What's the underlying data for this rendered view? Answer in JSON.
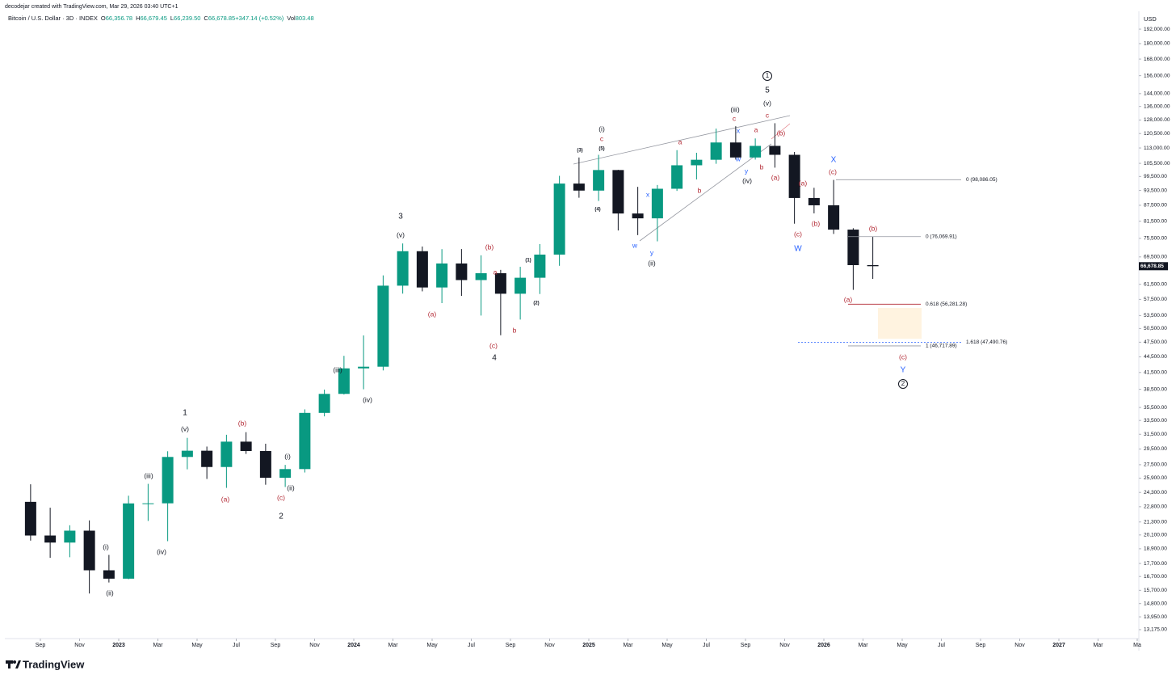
{
  "attribution": "decodejar created with TradingView.com, Mar 29, 2026 03:40 UTC+1",
  "brand": "TradingView",
  "chart_data": {
    "type": "candlestick",
    "title": "Bitcoin / U.S. Dollar · 3D · INDEX",
    "readout": [
      {
        "label": "O",
        "value": "66,356.78"
      },
      {
        "label": "H",
        "value": "66,679.45"
      },
      {
        "label": "L",
        "value": "66,239.50"
      },
      {
        "label": "C",
        "value": "66,678.85"
      },
      {
        "label": "",
        "value": "+347.14 (+0.52%)"
      },
      {
        "label": "Vol",
        "value": "803.48"
      }
    ],
    "currency": "USD",
    "log_scale": true,
    "grid": false,
    "up_color": "#089981",
    "down_color": "#131722",
    "x": [
      "2022-08",
      "2022-09",
      "2022-10",
      "2022-11",
      "2022-12",
      "2023-01",
      "2023-02",
      "2023-03",
      "2023-04",
      "2023-05",
      "2023-06",
      "2023-07",
      "2023-08",
      "2023-09",
      "2023-10",
      "2023-11",
      "2023-12",
      "2024-01",
      "2024-02",
      "2024-03",
      "2024-04",
      "2024-05",
      "2024-06",
      "2024-07",
      "2024-08",
      "2024-09",
      "2024-10",
      "2024-11",
      "2024-12",
      "2025-01",
      "2025-02",
      "2025-03",
      "2025-04",
      "2025-05",
      "2025-06",
      "2025-07",
      "2025-08",
      "2025-09",
      "2025-10",
      "2025-11",
      "2025-12",
      "2026-01",
      "2026-02",
      "2026-03"
    ],
    "open": [
      23300,
      20050,
      19430,
      20490,
      17170,
      16540,
      23140,
      23150,
      28470,
      29270,
      27220,
      30480,
      29230,
      25940,
      26970,
      34650,
      37720,
      42270,
      42580,
      61130,
      71290,
      60640,
      67490,
      62680,
      64620,
      58970,
      63330,
      70220,
      96400,
      93430,
      102400,
      84350,
      82550,
      94200,
      104600,
      107200,
      115800,
      108300,
      114050,
      109600,
      90400,
      87500,
      78500,
      67000
    ],
    "high": [
      25200,
      22700,
      20990,
      21450,
      18390,
      23950,
      25250,
      29200,
      31000,
      29820,
      31430,
      31800,
      30200,
      27480,
      35200,
      38450,
      44700,
      48970,
      64000,
      73800,
      72800,
      71950,
      71980,
      70000,
      65600,
      66500,
      73600,
      99800,
      108300,
      109600,
      102500,
      95000,
      95800,
      111900,
      110600,
      123200,
      124500,
      117900,
      126200,
      111000,
      94600,
      98000,
      79000,
      76000
    ],
    "low": [
      19600,
      18150,
      18200,
      15480,
      16260,
      16500,
      21400,
      19550,
      26940,
      25810,
      24800,
      28860,
      25150,
      24900,
      26560,
      34120,
      37620,
      38500,
      41880,
      59000,
      59600,
      56550,
      58400,
      53500,
      49000,
      52550,
      58900,
      66800,
      90500,
      89200,
      78200,
      76600,
      74500,
      93300,
      98200,
      105300,
      107300,
      107300,
      103500,
      80600,
      84400,
      77000,
      60000,
      63000
    ],
    "close": [
      20050,
      19430,
      20490,
      17170,
      16540,
      23140,
      23150,
      28470,
      29270,
      27220,
      30480,
      29230,
      25940,
      26970,
      34650,
      37720,
      42270,
      42580,
      61130,
      71290,
      60640,
      67490,
      62680,
      64620,
      58970,
      63330,
      70220,
      96400,
      93430,
      102400,
      84350,
      82550,
      94200,
      104600,
      107200,
      115800,
      108300,
      114050,
      109600,
      90400,
      87500,
      78500,
      67000,
      66678.85
    ],
    "xlim": [
      "2022-07",
      "2027-05"
    ],
    "xticks": [
      {
        "value": "2022-09",
        "label": "Sep"
      },
      {
        "value": "2022-11",
        "label": "Nov"
      },
      {
        "value": "2023-01",
        "label": "2023"
      },
      {
        "value": "2023-03",
        "label": "Mar"
      },
      {
        "value": "2023-05",
        "label": "May"
      },
      {
        "value": "2023-07",
        "label": "Jul"
      },
      {
        "value": "2023-09",
        "label": "Sep"
      },
      {
        "value": "2023-11",
        "label": "Nov"
      },
      {
        "value": "2024-01",
        "label": "2024"
      },
      {
        "value": "2024-03",
        "label": "Mar"
      },
      {
        "value": "2024-05",
        "label": "May"
      },
      {
        "value": "2024-07",
        "label": "Jul"
      },
      {
        "value": "2024-09",
        "label": "Sep"
      },
      {
        "value": "2024-11",
        "label": "Nov"
      },
      {
        "value": "2025-01",
        "label": "2025"
      },
      {
        "value": "2025-03",
        "label": "Mar"
      },
      {
        "value": "2025-05",
        "label": "May"
      },
      {
        "value": "2025-07",
        "label": "Jul"
      },
      {
        "value": "2025-09",
        "label": "Sep"
      },
      {
        "value": "2025-11",
        "label": "Nov"
      },
      {
        "value": "2026-01",
        "label": "2026"
      },
      {
        "value": "2026-03",
        "label": "Mar"
      },
      {
        "value": "2026-05",
        "label": "May"
      },
      {
        "value": "2026-07",
        "label": "Jul"
      },
      {
        "value": "2026-09",
        "label": "Sep"
      },
      {
        "value": "2026-11",
        "label": "Nov"
      },
      {
        "value": "2027-01",
        "label": "2027"
      },
      {
        "value": "2027-03",
        "label": "Mar"
      },
      {
        "value": "2027-05",
        "label": "Ma"
      }
    ],
    "ylim": [
      12660,
      207900
    ],
    "yticks": [
      {
        "value": 192000,
        "label": "192,000.00"
      },
      {
        "value": 180000,
        "label": "180,000.00"
      },
      {
        "value": 168000,
        "label": "168,000.00"
      },
      {
        "value": 156000,
        "label": "156,000.00"
      },
      {
        "value": 144000,
        "label": "144,000.00"
      },
      {
        "value": 136000,
        "label": "136,000.00"
      },
      {
        "value": 128000,
        "label": "128,000.00"
      },
      {
        "value": 120500,
        "label": "120,500.00"
      },
      {
        "value": 113000,
        "label": "113,000.00"
      },
      {
        "value": 105500,
        "label": "105,500.00"
      },
      {
        "value": 99500,
        "label": "99,500.00"
      },
      {
        "value": 93500,
        "label": "93,500.00"
      },
      {
        "value": 87500,
        "label": "87,500.00"
      },
      {
        "value": 81500,
        "label": "81,500.00"
      },
      {
        "value": 75500,
        "label": "75,500.00"
      },
      {
        "value": 69500,
        "label": "69,500.00"
      },
      {
        "value": 61500,
        "label": "61,500.00"
      },
      {
        "value": 57500,
        "label": "57,500.00"
      },
      {
        "value": 53500,
        "label": "53,500.00"
      },
      {
        "value": 50500,
        "label": "50,500.00"
      },
      {
        "value": 47500,
        "label": "47,500.00"
      },
      {
        "value": 44500,
        "label": "44,500.00"
      },
      {
        "value": 41500,
        "label": "41,500.00"
      },
      {
        "value": 38500,
        "label": "38,500.00"
      },
      {
        "value": 35500,
        "label": "35,500.00"
      },
      {
        "value": 33500,
        "label": "33,500.00"
      },
      {
        "value": 31500,
        "label": "31,500.00"
      },
      {
        "value": 29500,
        "label": "29,500.00"
      },
      {
        "value": 27500,
        "label": "27,500.00"
      },
      {
        "value": 25900,
        "label": "25,900.00"
      },
      {
        "value": 24300,
        "label": "24,300.00"
      },
      {
        "value": 22800,
        "label": "22,800.00"
      },
      {
        "value": 21300,
        "label": "21,300.00"
      },
      {
        "value": 20100,
        "label": "20,100.00"
      },
      {
        "value": 18900,
        "label": "18,900.00"
      },
      {
        "value": 17700,
        "label": "17,700.00"
      },
      {
        "value": 16700,
        "label": "16,700.00"
      },
      {
        "value": 15700,
        "label": "15,700.00"
      },
      {
        "value": 14800,
        "label": "14,800.00"
      },
      {
        "value": 13950,
        "label": "13,950.00"
      },
      {
        "value": 13175,
        "label": "13,175.00"
      }
    ],
    "last_price": {
      "value": 66678.85,
      "label": "66,678.85"
    },
    "fib_levels": [
      {
        "value": 98086.05,
        "label": "0 (98,086.05)",
        "color": "#9598a1"
      },
      {
        "value": 76069.91,
        "label": "0 (76,069.91)",
        "color": "#9598a1"
      },
      {
        "value": 56281.28,
        "label": "0.618 (56,281.28)",
        "color": "#b22833"
      },
      {
        "value": 47490.76,
        "label": "1.618 (47,490.76)",
        "color": "#2962ff"
      },
      {
        "value": 46717.89,
        "label": "1 (46,717.89)",
        "color": "#9598a1"
      }
    ],
    "annotations": [
      {
        "text": "1",
        "color": "#131722"
      },
      {
        "text": "(v)",
        "color": "#131722"
      },
      {
        "text": "(iii)",
        "color": "#131722"
      },
      {
        "text": "(iv)",
        "color": "#131722"
      },
      {
        "text": "(i)",
        "color": "#131722"
      },
      {
        "text": "(ii)",
        "color": "#131722"
      },
      {
        "text": "2",
        "color": "#131722"
      },
      {
        "text": "(i)",
        "color": "#131722"
      },
      {
        "text": "(ii)",
        "color": "#131722"
      },
      {
        "text": "3",
        "color": "#131722"
      },
      {
        "text": "(v)",
        "color": "#131722"
      },
      {
        "text": "(iii)",
        "color": "#131722"
      },
      {
        "text": "(iv)",
        "color": "#131722"
      },
      {
        "text": "4",
        "color": "#131722"
      },
      {
        "text": "(1)",
        "color": "#131722"
      },
      {
        "text": "(2)",
        "color": "#131722"
      },
      {
        "text": "(3)",
        "color": "#131722"
      },
      {
        "text": "(4)",
        "color": "#131722"
      },
      {
        "text": "(5)",
        "color": "#131722"
      },
      {
        "text": "(i)",
        "color": "#131722"
      },
      {
        "text": "(ii)",
        "color": "#131722"
      },
      {
        "text": "(iii)",
        "color": "#131722"
      },
      {
        "text": "(iv)",
        "color": "#131722"
      },
      {
        "text": "5",
        "color": "#131722"
      },
      {
        "text": "(v)",
        "color": "#131722"
      },
      {
        "text": "1",
        "color": "#131722"
      },
      {
        "text": "2",
        "color": "#131722"
      },
      {
        "text": "(b)",
        "color": "#b22833"
      },
      {
        "text": "(a)",
        "color": "#b22833"
      },
      {
        "text": "(c)",
        "color": "#b22833"
      },
      {
        "text": "(a)",
        "color": "#b22833"
      },
      {
        "text": "(b)",
        "color": "#b22833"
      },
      {
        "text": "a",
        "color": "#b22833"
      },
      {
        "text": "(c)",
        "color": "#b22833"
      },
      {
        "text": "b",
        "color": "#b22833"
      },
      {
        "text": "c",
        "color": "#b22833"
      },
      {
        "text": "a",
        "color": "#b22833"
      },
      {
        "text": "b",
        "color": "#b22833"
      },
      {
        "text": "c",
        "color": "#b22833"
      },
      {
        "text": "a",
        "color": "#b22833"
      },
      {
        "text": "b",
        "color": "#b22833"
      },
      {
        "text": "c",
        "color": "#b22833"
      },
      {
        "text": "(b)",
        "color": "#b22833"
      },
      {
        "text": "(a)",
        "color": "#b22833"
      },
      {
        "text": "(a)",
        "color": "#b22833"
      },
      {
        "text": "(b)",
        "color": "#b22833"
      },
      {
        "text": "(c)",
        "color": "#b22833"
      },
      {
        "text": "(c)",
        "color": "#b22833"
      },
      {
        "text": "(b)",
        "color": "#b22833"
      },
      {
        "text": "(a)",
        "color": "#b22833"
      },
      {
        "text": "(c)",
        "color": "#b22833"
      },
      {
        "text": "x",
        "color": "#2962ff"
      },
      {
        "text": "w",
        "color": "#2962ff"
      },
      {
        "text": "y",
        "color": "#2962ff"
      },
      {
        "text": "x",
        "color": "#2962ff"
      },
      {
        "text": "w",
        "color": "#2962ff"
      },
      {
        "text": "y",
        "color": "#2962ff"
      },
      {
        "text": "X",
        "color": "#2962ff"
      },
      {
        "text": "W",
        "color": "#2962ff"
      },
      {
        "text": "Y",
        "color": "#2962ff"
      }
    ]
  }
}
